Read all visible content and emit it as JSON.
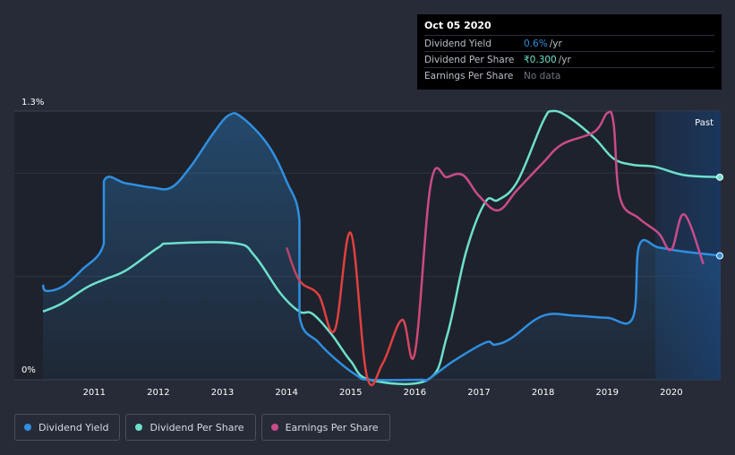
{
  "tooltip": {
    "date": "Oct 05 2020",
    "rows": [
      {
        "label": "Dividend Yield",
        "value": "0.6%",
        "unit": "/yr",
        "color": "#2f8fe0"
      },
      {
        "label": "Dividend Per Share",
        "value": "₹0.300",
        "unit": "/yr",
        "color": "#6de0cc"
      },
      {
        "label": "Earnings Per Share",
        "value": "No data",
        "unit": "",
        "color": "#6f7580"
      }
    ]
  },
  "legend": [
    {
      "label": "Dividend Yield",
      "color": "#2f8fe0"
    },
    {
      "label": "Dividend Per Share",
      "color": "#6de0cc"
    },
    {
      "label": "Earnings Per Share",
      "color": "#c94b8a"
    }
  ],
  "chart_data": {
    "type": "line",
    "y_top_label": "1.3%",
    "y_bottom_label": "0%",
    "past_label": "Past",
    "ylim": [
      0,
      1.3
    ],
    "xlim": [
      2010.2,
      2020.77
    ],
    "x_ticks": [
      2011,
      2012,
      2013,
      2014,
      2015,
      2016,
      2017,
      2018,
      2019,
      2020
    ],
    "forecast_start": 2019.75,
    "series": [
      {
        "name": "Dividend Yield",
        "color": "#2f8fe0",
        "area": true,
        "points": [
          [
            2010.2,
            0.46
          ],
          [
            2010.25,
            0.43
          ],
          [
            2010.5,
            0.45
          ],
          [
            2010.8,
            0.53
          ],
          [
            2011.15,
            0.66
          ],
          [
            2011.15,
            0.96
          ],
          [
            2011.5,
            0.95
          ],
          [
            2011.9,
            0.93
          ],
          [
            2012.2,
            0.93
          ],
          [
            2012.5,
            1.03
          ],
          [
            2012.85,
            1.19
          ],
          [
            2013.1,
            1.28
          ],
          [
            2013.3,
            1.27
          ],
          [
            2013.7,
            1.14
          ],
          [
            2014.0,
            0.96
          ],
          [
            2014.2,
            0.77
          ],
          [
            2014.2,
            0.31
          ],
          [
            2014.5,
            0.18
          ],
          [
            2014.8,
            0.09
          ],
          [
            2015.1,
            0.02
          ],
          [
            2015.3,
            0.0
          ],
          [
            2016.1,
            0.0
          ],
          [
            2016.2,
            0.0
          ],
          [
            2016.6,
            0.09
          ],
          [
            2017.1,
            0.18
          ],
          [
            2017.25,
            0.17
          ],
          [
            2017.5,
            0.2
          ],
          [
            2018.0,
            0.31
          ],
          [
            2018.5,
            0.31
          ],
          [
            2019.0,
            0.3
          ],
          [
            2019.4,
            0.3
          ],
          [
            2019.5,
            0.65
          ],
          [
            2019.8,
            0.64
          ],
          [
            2020.2,
            0.62
          ],
          [
            2020.77,
            0.6
          ]
        ]
      },
      {
        "name": "Dividend Per Share",
        "color": "#6de0cc",
        "area": false,
        "points": [
          [
            2010.2,
            0.33
          ],
          [
            2010.5,
            0.37
          ],
          [
            2010.9,
            0.45
          ],
          [
            2011.2,
            0.49
          ],
          [
            2011.5,
            0.53
          ],
          [
            2012.0,
            0.64
          ],
          [
            2012.2,
            0.66
          ],
          [
            2013.2,
            0.66
          ],
          [
            2013.5,
            0.6
          ],
          [
            2013.9,
            0.42
          ],
          [
            2014.2,
            0.33
          ],
          [
            2014.4,
            0.32
          ],
          [
            2014.7,
            0.22
          ],
          [
            2015.0,
            0.09
          ],
          [
            2015.3,
            0.0
          ],
          [
            2016.2,
            0.0
          ],
          [
            2016.5,
            0.21
          ],
          [
            2016.8,
            0.62
          ],
          [
            2017.1,
            0.86
          ],
          [
            2017.3,
            0.87
          ],
          [
            2017.6,
            0.96
          ],
          [
            2018.0,
            1.25
          ],
          [
            2018.15,
            1.3
          ],
          [
            2018.4,
            1.27
          ],
          [
            2018.8,
            1.17
          ],
          [
            2019.1,
            1.07
          ],
          [
            2019.4,
            1.04
          ],
          [
            2019.75,
            1.03
          ],
          [
            2020.2,
            0.99
          ],
          [
            2020.77,
            0.98
          ]
        ]
      },
      {
        "name": "Earnings Per Share",
        "color": "#c94b8a",
        "area": false,
        "points": [
          [
            2014.0,
            0.64
          ],
          [
            2014.2,
            0.48
          ],
          [
            2014.5,
            0.41
          ],
          [
            2014.75,
            0.24
          ],
          [
            2015.0,
            0.71
          ],
          [
            2015.25,
            0.02
          ],
          [
            2015.5,
            0.08
          ],
          [
            2015.8,
            0.29
          ],
          [
            2016.0,
            0.13
          ],
          [
            2016.25,
            0.95
          ],
          [
            2016.5,
            0.98
          ],
          [
            2016.75,
            0.99
          ],
          [
            2017.0,
            0.89
          ],
          [
            2017.3,
            0.82
          ],
          [
            2017.6,
            0.92
          ],
          [
            2018.0,
            1.05
          ],
          [
            2018.3,
            1.14
          ],
          [
            2018.8,
            1.2
          ],
          [
            2019.0,
            1.29
          ],
          [
            2019.1,
            1.24
          ],
          [
            2019.2,
            0.88
          ],
          [
            2019.5,
            0.78
          ],
          [
            2019.8,
            0.71
          ],
          [
            2020.0,
            0.63
          ],
          [
            2020.2,
            0.8
          ],
          [
            2020.5,
            0.56
          ]
        ]
      }
    ],
    "end_markers": [
      {
        "series": "Dividend Per Share",
        "x": 2020.77,
        "y": 0.98
      },
      {
        "series": "Dividend Yield",
        "x": 2020.77,
        "y": 0.6
      }
    ]
  }
}
